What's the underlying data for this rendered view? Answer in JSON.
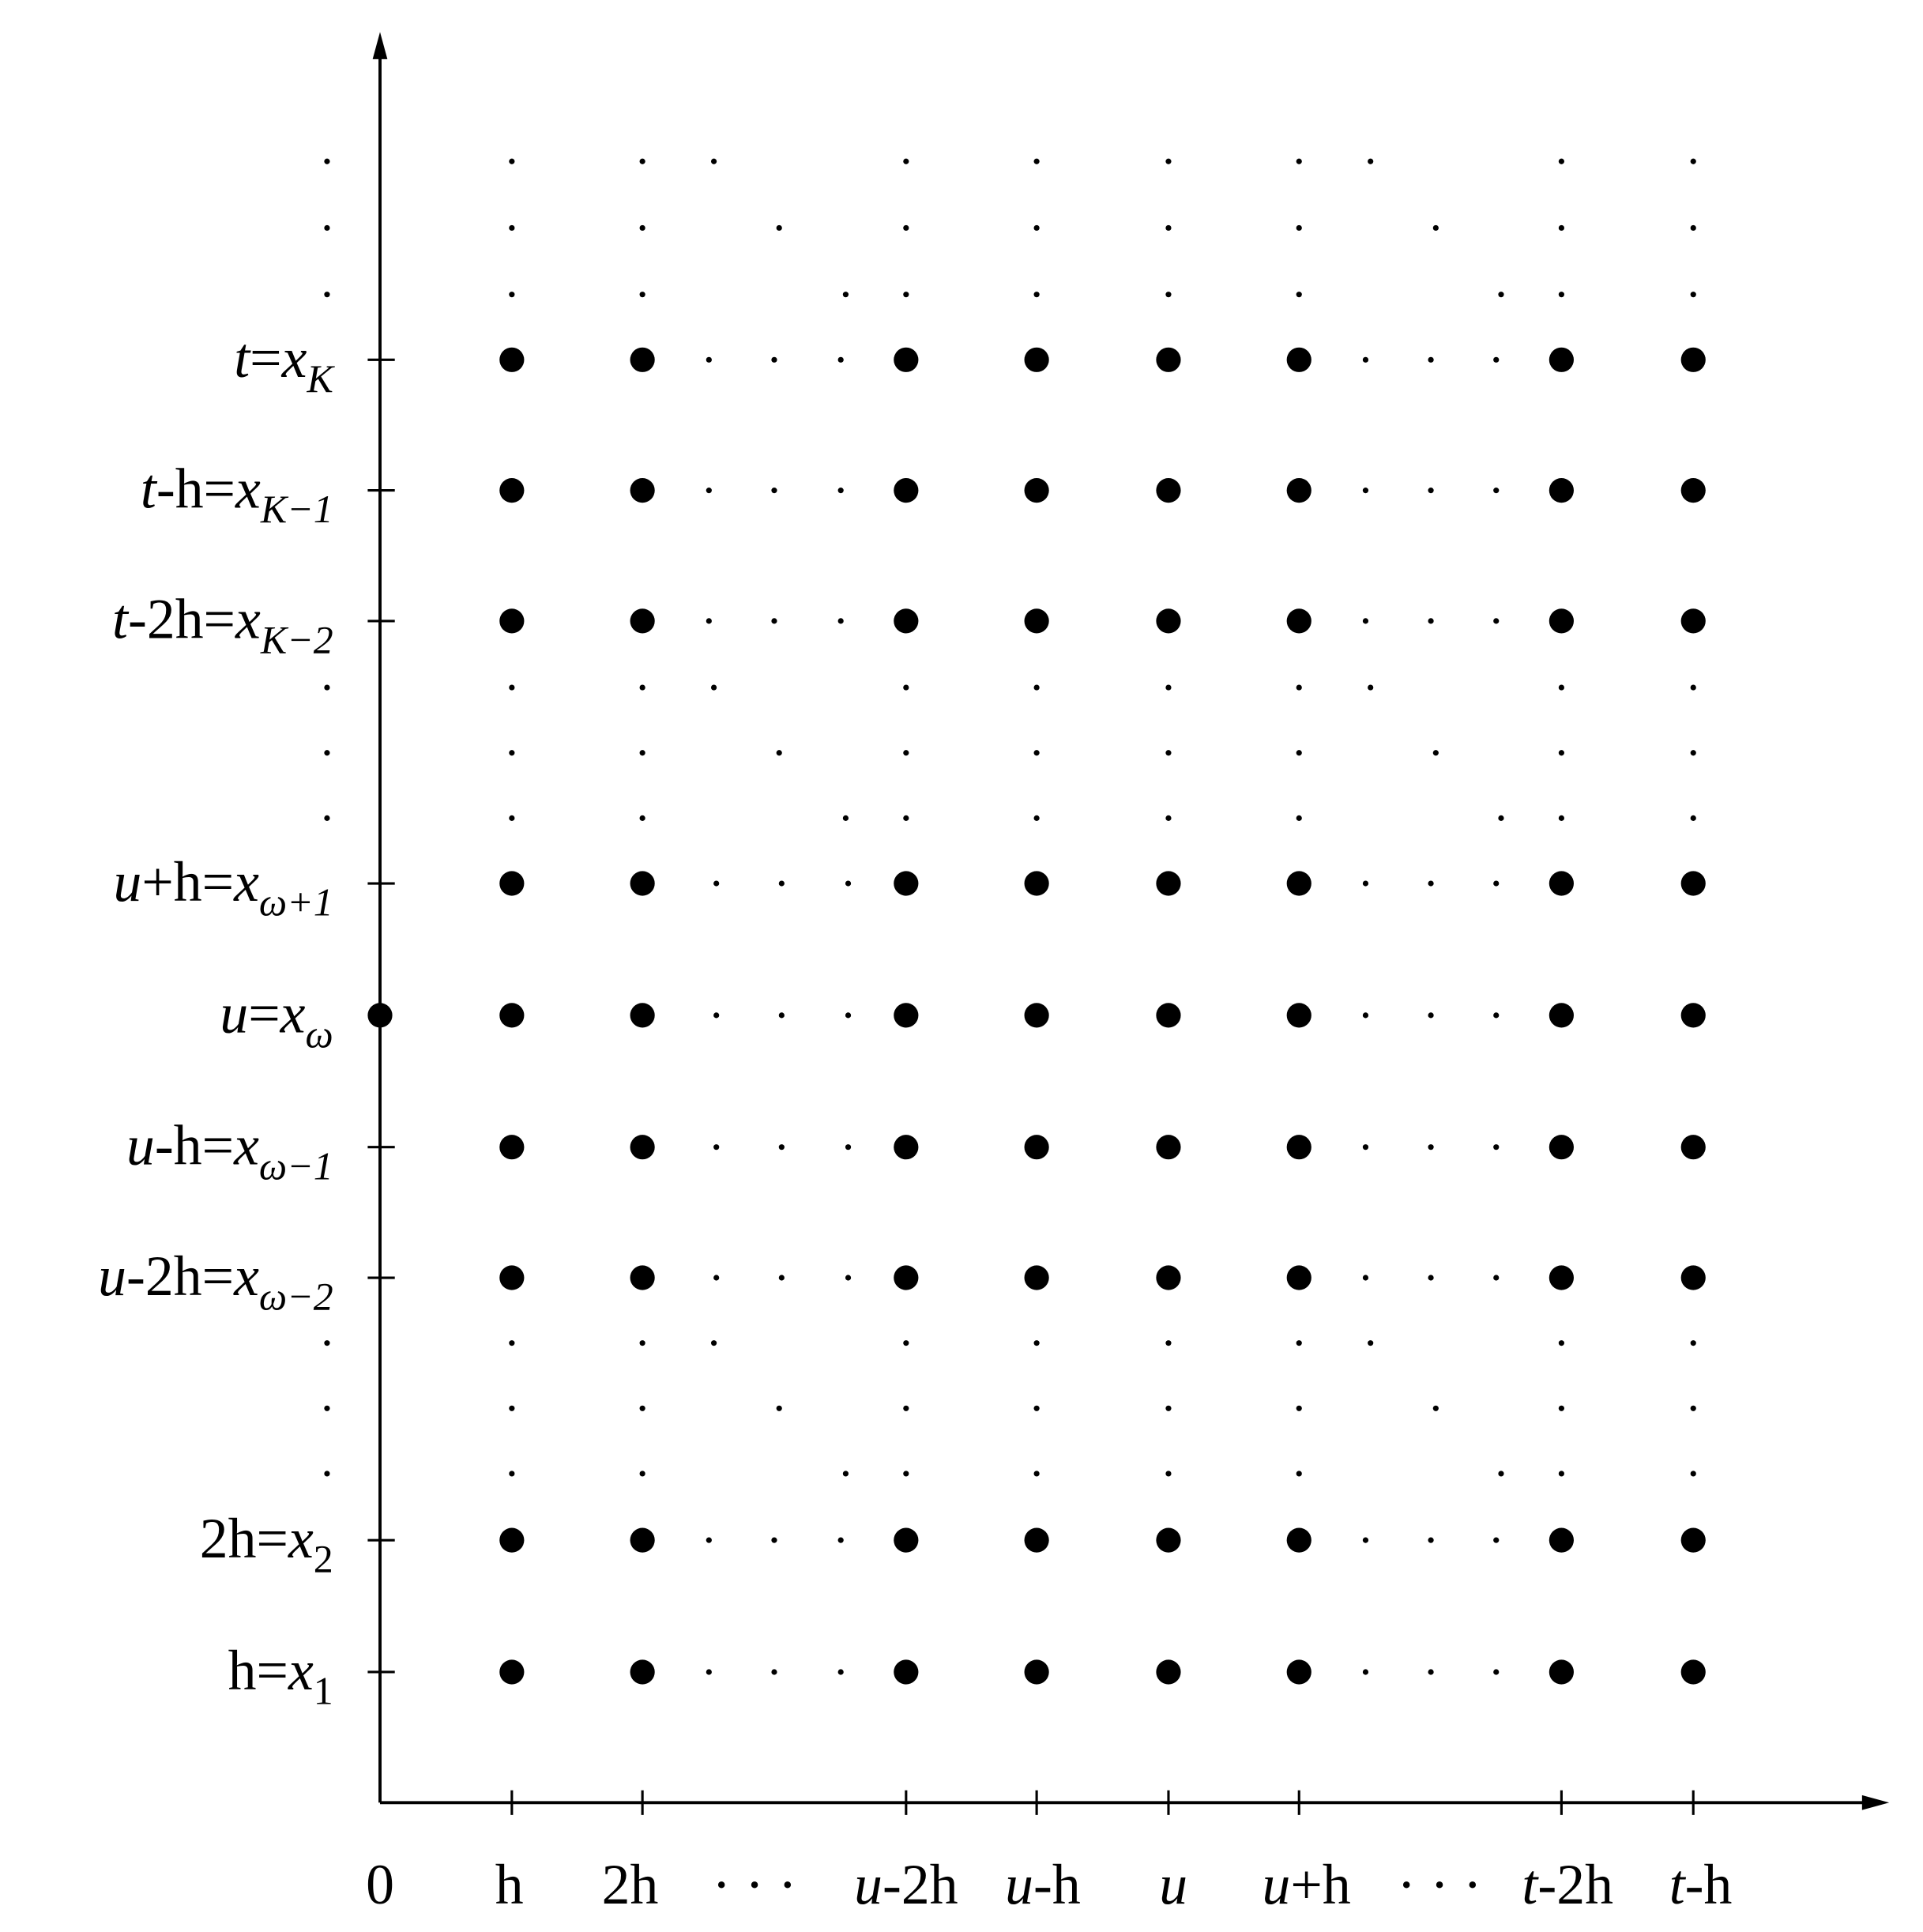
{
  "x_axis": {
    "labels": [
      [
        {
          "t": "0"
        }
      ],
      [
        {
          "t": "h"
        }
      ],
      [
        {
          "t": "2h"
        }
      ],
      [
        {
          "t": "· · ·"
        }
      ],
      [
        {
          "t": "u",
          "i": true
        },
        {
          "t": "-2h"
        }
      ],
      [
        {
          "t": "u",
          "i": true
        },
        {
          "t": "-h"
        }
      ],
      [
        {
          "t": "u",
          "i": true
        }
      ],
      [
        {
          "t": "u",
          "i": true
        },
        {
          "t": "+h"
        }
      ],
      [
        {
          "t": "· · ·"
        }
      ],
      [
        {
          "t": "t",
          "i": true
        },
        {
          "t": "-2h"
        }
      ],
      [
        {
          "t": "t",
          "i": true
        },
        {
          "t": "-h"
        }
      ]
    ]
  },
  "y_axis": {
    "labels": [
      [
        {
          "t": "t",
          "i": true
        },
        {
          "t": "="
        },
        {
          "t": "x",
          "i": true
        },
        {
          "t": "K",
          "i": true,
          "sub": true
        }
      ],
      [
        {
          "t": "t",
          "i": true
        },
        {
          "t": "-h="
        },
        {
          "t": "x",
          "i": true
        },
        {
          "t": "K−1",
          "i": true,
          "sub": true
        }
      ],
      [
        {
          "t": "t",
          "i": true
        },
        {
          "t": "-2h="
        },
        {
          "t": "x",
          "i": true
        },
        {
          "t": "K−2",
          "i": true,
          "sub": true
        }
      ],
      [
        {
          "t": "u",
          "i": true
        },
        {
          "t": "+h="
        },
        {
          "t": "x",
          "i": true
        },
        {
          "t": "ω+1",
          "i": true,
          "sub": true
        }
      ],
      [
        {
          "t": "u",
          "i": true
        },
        {
          "t": "="
        },
        {
          "t": "x",
          "i": true
        },
        {
          "t": "ω",
          "i": true,
          "sub": true
        }
      ],
      [
        {
          "t": "u",
          "i": true
        },
        {
          "t": "-h="
        },
        {
          "t": "x",
          "i": true
        },
        {
          "t": "ω−1",
          "i": true,
          "sub": true
        }
      ],
      [
        {
          "t": "u",
          "i": true
        },
        {
          "t": "-2h="
        },
        {
          "t": "x",
          "i": true
        },
        {
          "t": "ω−2",
          "i": true,
          "sub": true
        }
      ],
      [
        {
          "t": "2h="
        },
        {
          "t": "x",
          "i": true
        },
        {
          "t": "2",
          "sub": true
        }
      ],
      [
        {
          "t": "h="
        },
        {
          "t": "x",
          "i": true
        },
        {
          "t": "1",
          "sub": true
        }
      ]
    ]
  }
}
